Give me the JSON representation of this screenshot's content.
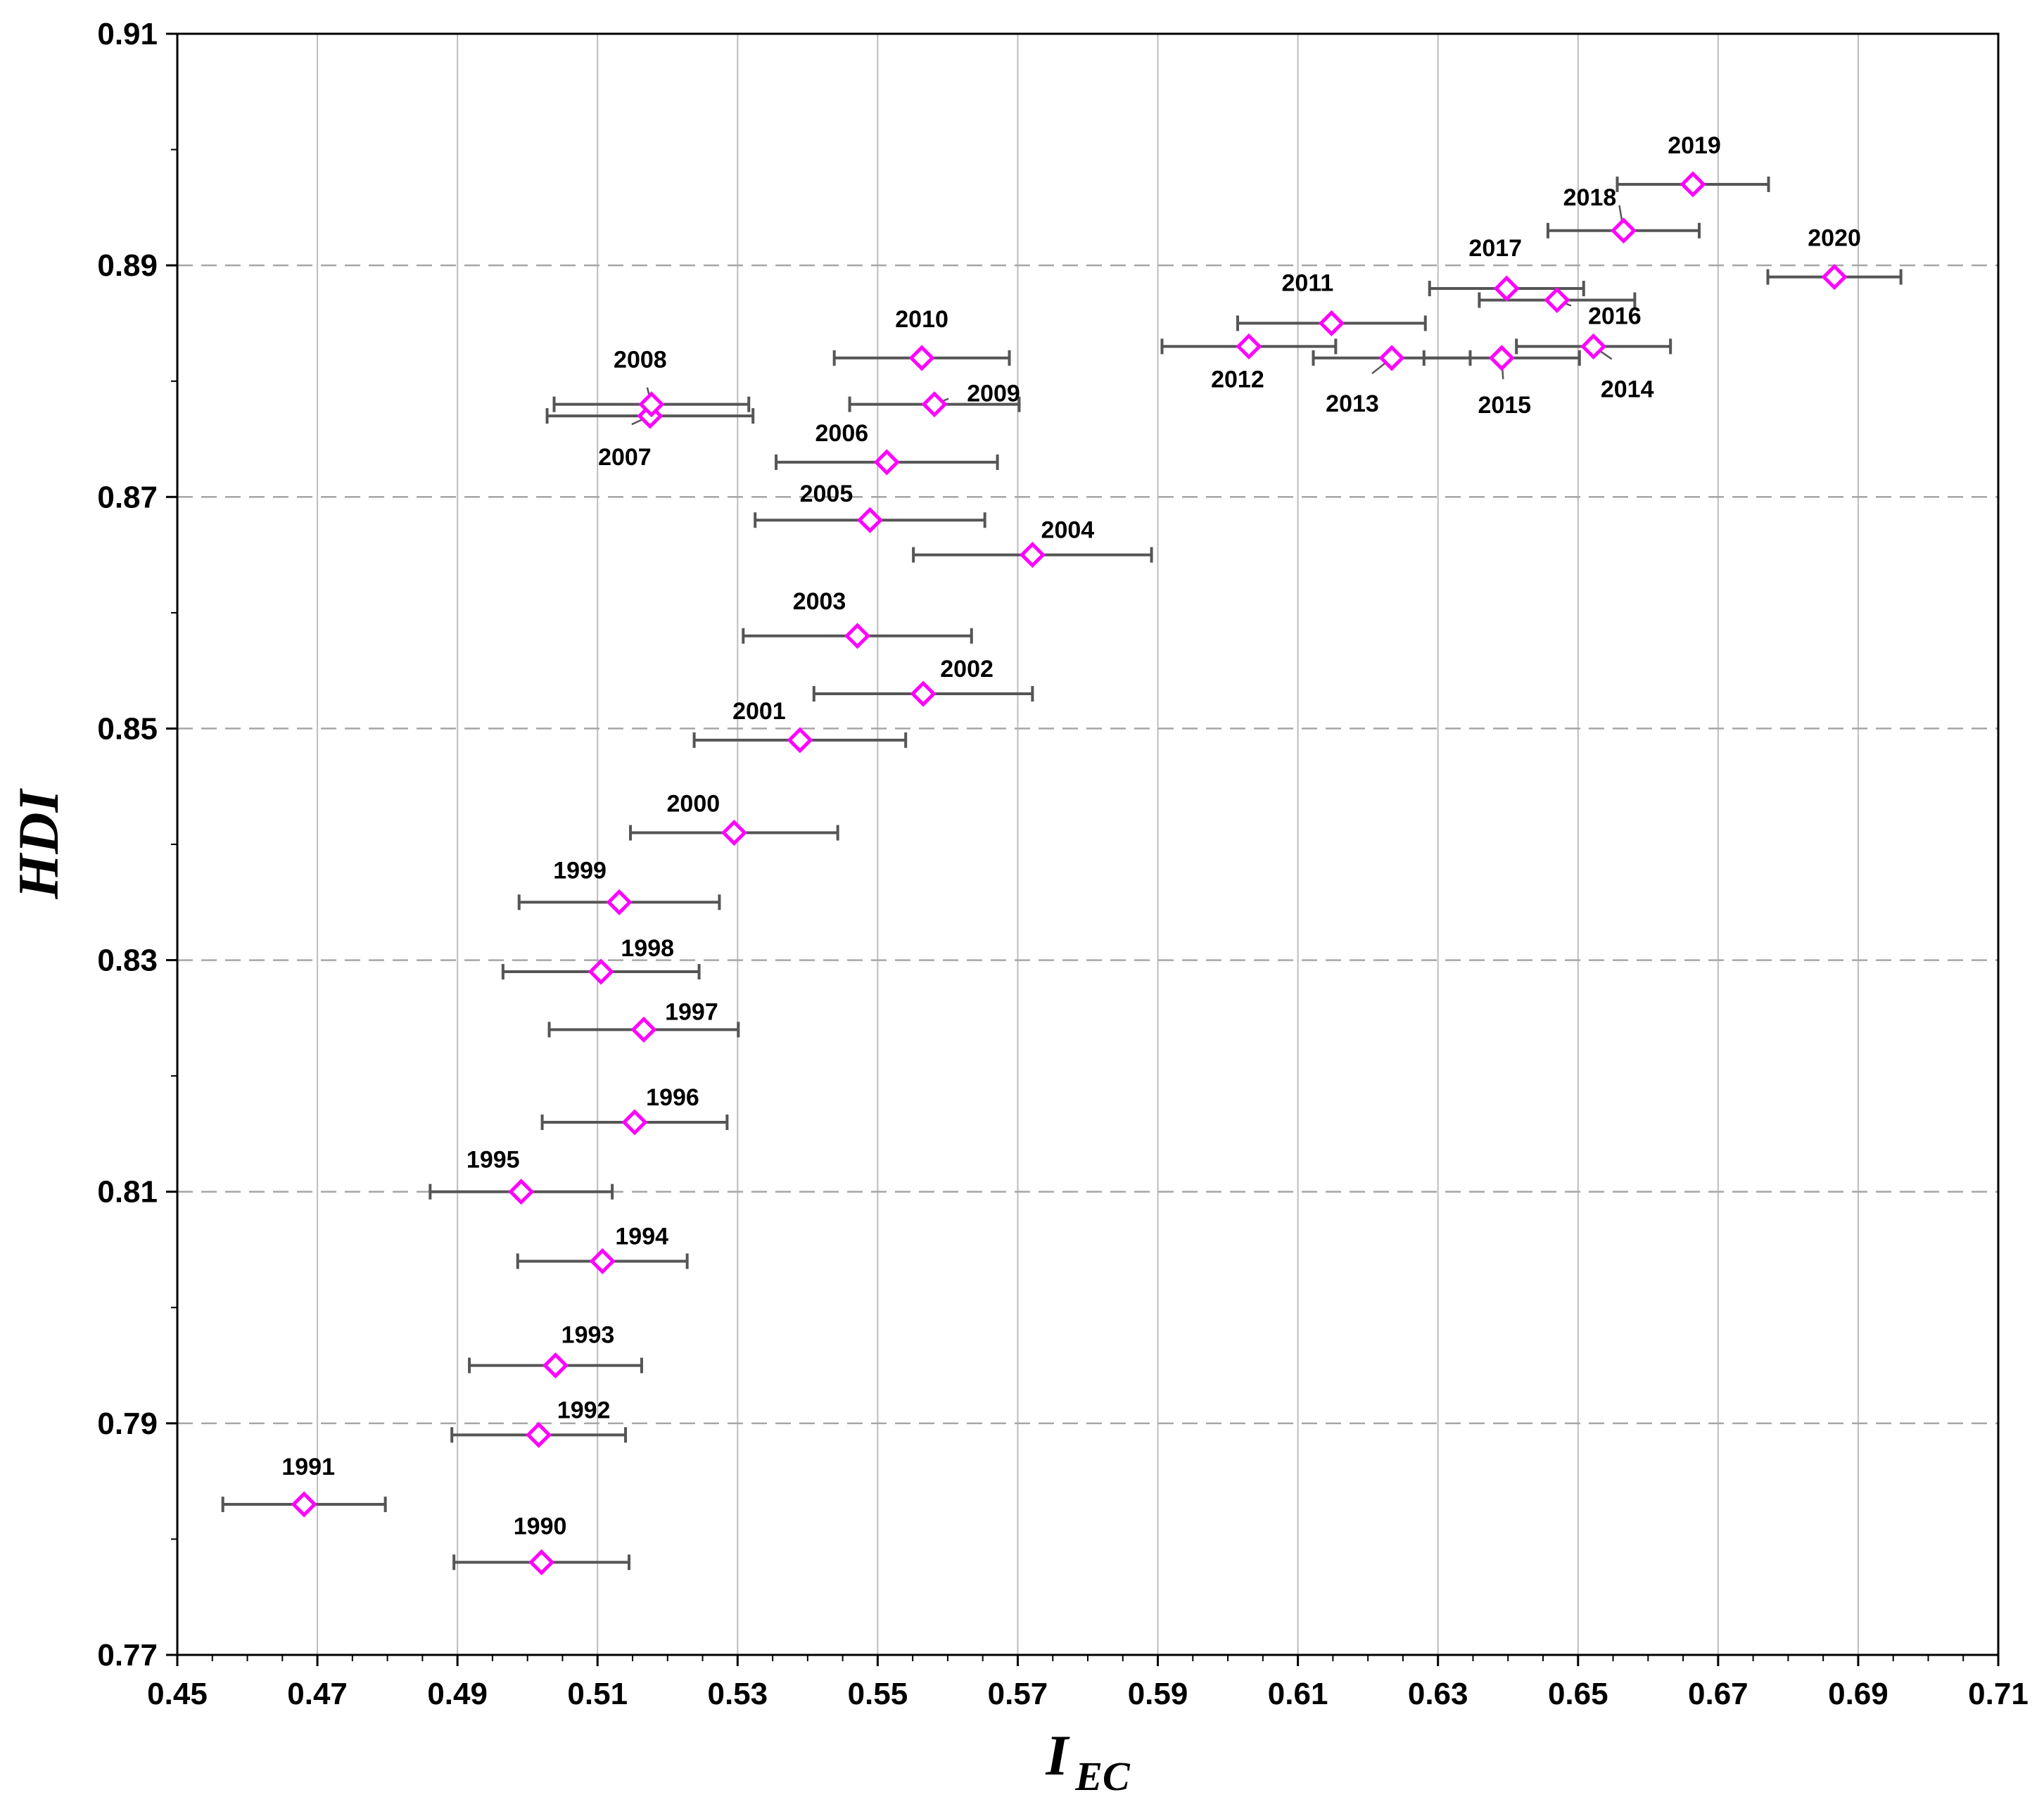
{
  "chart_data": {
    "type": "scatter",
    "title": "",
    "xlabel": "I",
    "xlabel_subscript": "EC",
    "ylabel": "HDI",
    "xlim": [
      0.45,
      0.71
    ],
    "ylim": [
      0.77,
      0.91
    ],
    "x_ticks": [
      "0.45",
      "0.47",
      "0.49",
      "0.51",
      "0.53",
      "0.55",
      "0.57",
      "0.59",
      "0.61",
      "0.63",
      "0.65",
      "0.67",
      "0.69",
      "0.71"
    ],
    "y_ticks": [
      "0.77",
      "0.79",
      "0.81",
      "0.83",
      "0.85",
      "0.87",
      "0.89",
      "0.91"
    ],
    "grid": {
      "x": "solid",
      "y": "dashed"
    },
    "marker": {
      "shape": "diamond",
      "color": "#ff00ff"
    },
    "errorbar_color": "#555555",
    "points": [
      {
        "label": "1990",
        "x": 0.502,
        "y": 0.778,
        "xerr": 0.0125
      },
      {
        "label": "1991",
        "x": 0.4681,
        "y": 0.783,
        "xerr": 0.0116
      },
      {
        "label": "1992",
        "x": 0.5016,
        "y": 0.789,
        "xerr": 0.0124
      },
      {
        "label": "1993",
        "x": 0.504,
        "y": 0.795,
        "xerr": 0.0123
      },
      {
        "label": "1994",
        "x": 0.5107,
        "y": 0.804,
        "xerr": 0.0121
      },
      {
        "label": "1995",
        "x": 0.4991,
        "y": 0.81,
        "xerr": 0.013
      },
      {
        "label": "1996",
        "x": 0.5153,
        "y": 0.816,
        "xerr": 0.0132
      },
      {
        "label": "1997",
        "x": 0.5166,
        "y": 0.824,
        "xerr": 0.0135
      },
      {
        "label": "1998",
        "x": 0.5105,
        "y": 0.829,
        "xerr": 0.014
      },
      {
        "label": "1999",
        "x": 0.5131,
        "y": 0.835,
        "xerr": 0.0143
      },
      {
        "label": "2000",
        "x": 0.5295,
        "y": 0.841,
        "xerr": 0.0148
      },
      {
        "label": "2001",
        "x": 0.5389,
        "y": 0.849,
        "xerr": 0.0151
      },
      {
        "label": "2002",
        "x": 0.5565,
        "y": 0.853,
        "xerr": 0.0156
      },
      {
        "label": "2003",
        "x": 0.5471,
        "y": 0.858,
        "xerr": 0.0163
      },
      {
        "label": "2004",
        "x": 0.5721,
        "y": 0.865,
        "xerr": 0.017
      },
      {
        "label": "2005",
        "x": 0.5489,
        "y": 0.868,
        "xerr": 0.0164
      },
      {
        "label": "2006",
        "x": 0.5513,
        "y": 0.873,
        "xerr": 0.0158
      },
      {
        "label": "2007",
        "x": 0.5175,
        "y": 0.877,
        "xerr": 0.0147
      },
      {
        "label": "2008",
        "x": 0.5177,
        "y": 0.878,
        "xerr": 0.0139
      },
      {
        "label": "2009",
        "x": 0.5581,
        "y": 0.878,
        "xerr": 0.0121
      },
      {
        "label": "2010",
        "x": 0.5563,
        "y": 0.882,
        "xerr": 0.0125
      },
      {
        "label": "2011",
        "x": 0.6148,
        "y": 0.885,
        "xerr": 0.0134
      },
      {
        "label": "2012",
        "x": 0.603,
        "y": 0.883,
        "xerr": 0.0124
      },
      {
        "label": "2013",
        "x": 0.6234,
        "y": 0.882,
        "xerr": 0.0112
      },
      {
        "label": "2014",
        "x": 0.6522,
        "y": 0.883,
        "xerr": 0.011
      },
      {
        "label": "2015",
        "x": 0.6391,
        "y": 0.882,
        "xerr": 0.0111
      },
      {
        "label": "2016",
        "x": 0.647,
        "y": 0.887,
        "xerr": 0.0111
      },
      {
        "label": "2017",
        "x": 0.6398,
        "y": 0.888,
        "xerr": 0.011
      },
      {
        "label": "2018",
        "x": 0.6565,
        "y": 0.893,
        "xerr": 0.0108
      },
      {
        "label": "2019",
        "x": 0.6664,
        "y": 0.897,
        "xerr": 0.0108
      },
      {
        "label": "2020",
        "x": 0.6866,
        "y": 0.889,
        "xerr": 0.0095
      }
    ]
  }
}
